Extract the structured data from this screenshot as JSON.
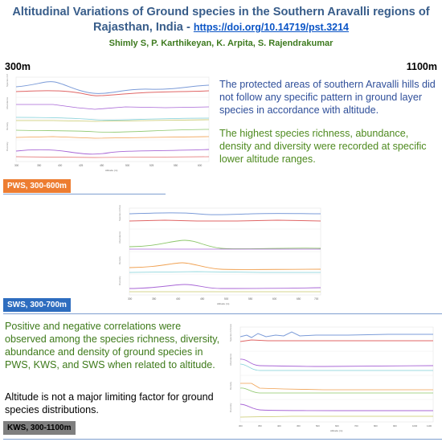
{
  "header": {
    "title": "Altitudinal Variations of Ground species in the Southern Aravalli regions of Rajasthan, India -",
    "doi": "https://doi.org/10.14719/pst.3214",
    "authors": "Shimly S, P. Karthikeyan, K. Arpita, S. Rajendrakumar"
  },
  "altitude_range": {
    "low": "300m",
    "high": "1100m"
  },
  "findings": {
    "pattern": "The protected areas of southern Aravalli hills did not follow any  specific pattern in ground layer species in accordance with altitude.",
    "richness": "The highest species richness, abundance, density and diversity were recorded at specific lower altitude ranges.",
    "correlations": "Positive and negative correlations were observed among the species richness, diversity, abundance and density of ground species in PWS, KWS, and SWS when related to altitude.",
    "limiting": "Altitude is not a major limiting factor for ground species distributions."
  },
  "labels": {
    "pws": "PWS, 300-600m",
    "sws": "SWS, 300-700m",
    "kws": "KWS, 300-1100m"
  },
  "colors": {
    "pws": "#ed7d31",
    "sws": "#2e6dbf",
    "kws": "#7f7f7f",
    "line_blue": "#7b9bd8",
    "line_red": "#e06666",
    "line_purple": "#a866d6",
    "line_orange": "#f0a050",
    "line_green": "#8cc66a",
    "line_cyan": "#7fd0d8",
    "line_olive": "#c8c86a"
  }
}
